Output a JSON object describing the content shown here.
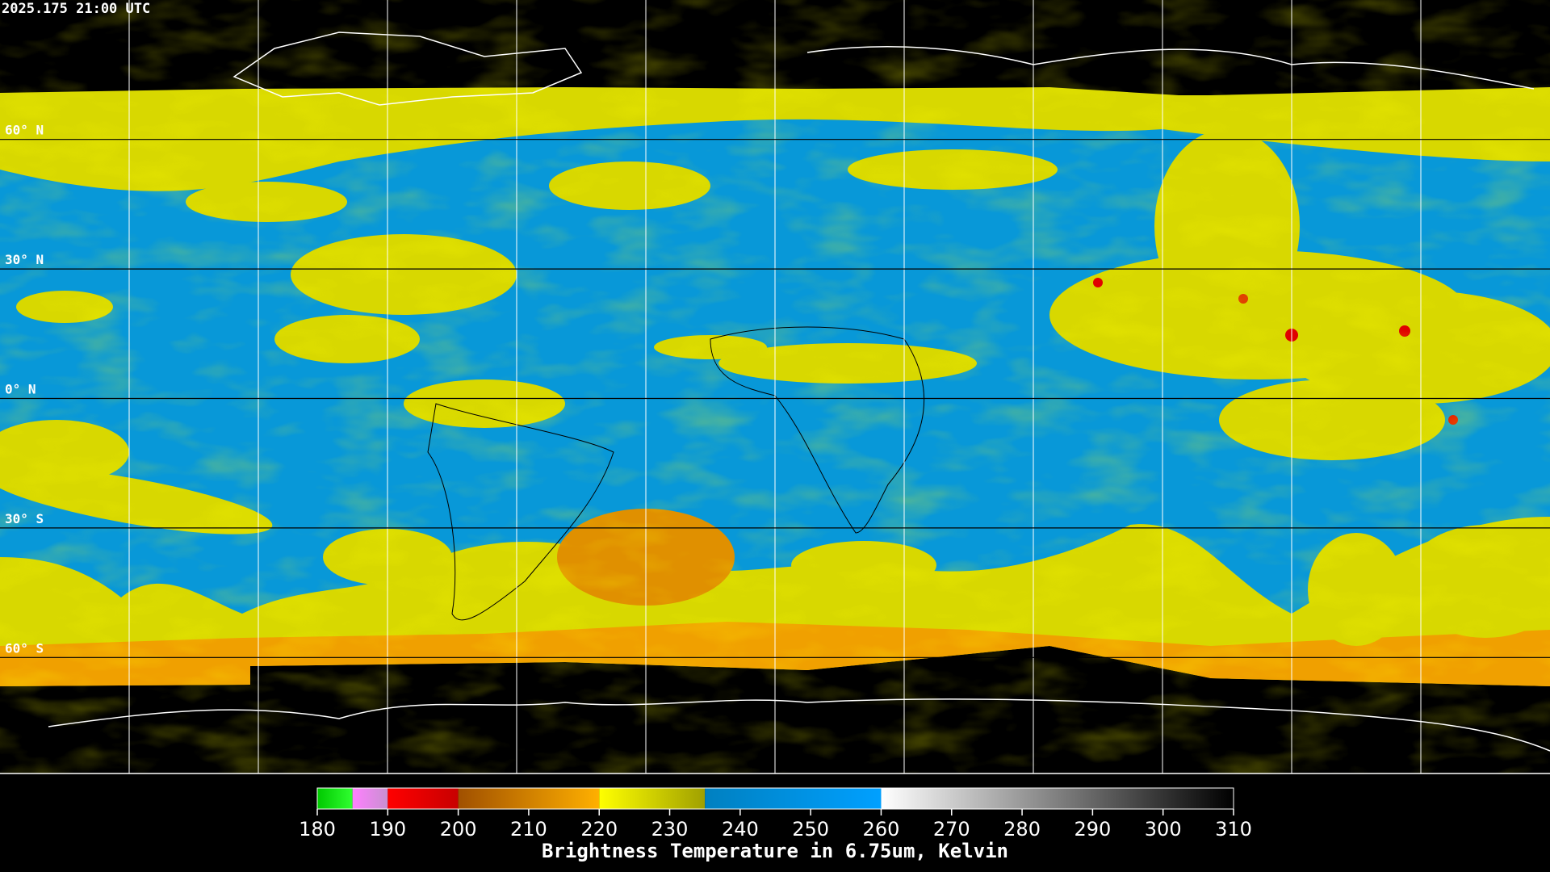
{
  "header": {
    "timestamp": "2025.175 21:00 UTC"
  },
  "map": {
    "latitudes": [
      {
        "value": 60,
        "label": "60° N"
      },
      {
        "value": 30,
        "label": "30° N"
      },
      {
        "value": 0,
        "label": "0° N"
      },
      {
        "value": -30,
        "label": "30° S"
      },
      {
        "value": -60,
        "label": "60° S"
      }
    ]
  },
  "colorbar": {
    "label": "Brightness Temperature in 6.75um, Kelvin",
    "range": [
      180,
      310
    ],
    "ticks": [
      180,
      190,
      200,
      210,
      220,
      230,
      240,
      250,
      260,
      270,
      280,
      290,
      300,
      310
    ],
    "stops": [
      {
        "from": 180,
        "to": 185,
        "colors": [
          "#00c800",
          "#30ff30"
        ]
      },
      {
        "from": 185,
        "to": 190,
        "colors": [
          "#ff80ff",
          "#c890d0"
        ]
      },
      {
        "from": 190,
        "to": 200,
        "colors": [
          "#ff0000",
          "#c80000"
        ]
      },
      {
        "from": 200,
        "to": 220,
        "colors": [
          "#a05000",
          "#ffb000"
        ]
      },
      {
        "from": 220,
        "to": 235,
        "colors": [
          "#ffff00",
          "#a0a000"
        ]
      },
      {
        "from": 235,
        "to": 260,
        "colors": [
          "#0080c0",
          "#00a0ff"
        ]
      },
      {
        "from": 260,
        "to": 310,
        "colors": [
          "#ffffff",
          "#000000"
        ]
      }
    ]
  }
}
